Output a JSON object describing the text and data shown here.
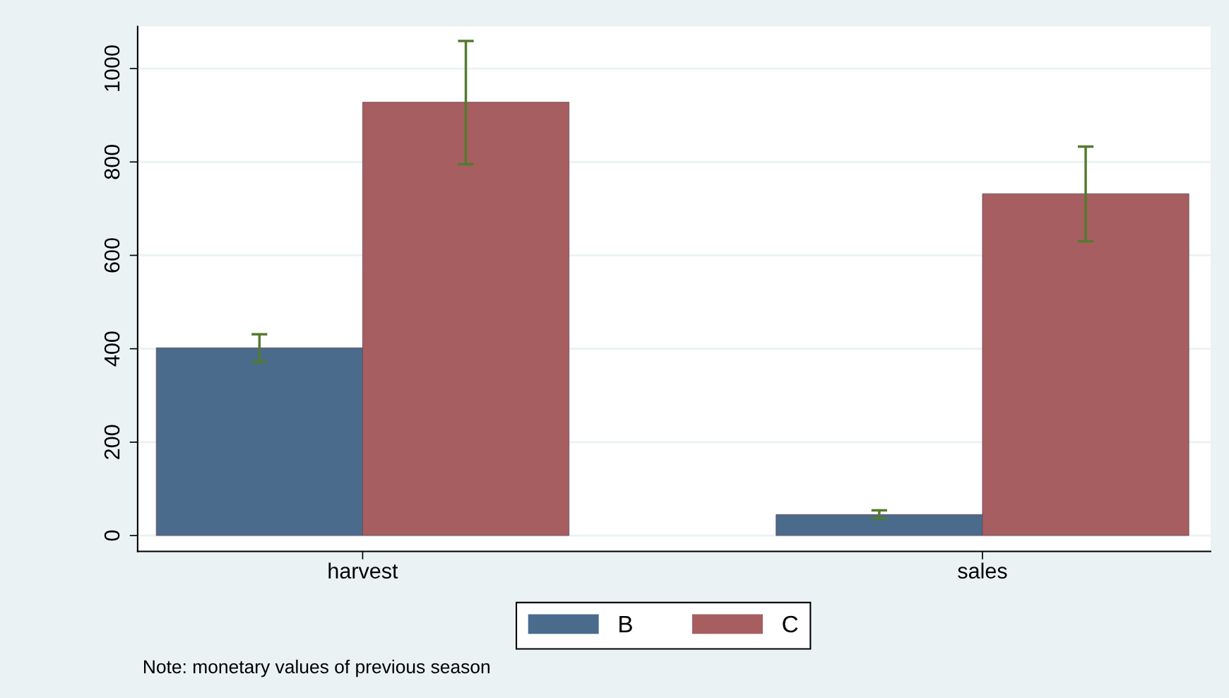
{
  "chart_data": {
    "type": "bar",
    "categories": [
      "harvest",
      "sales"
    ],
    "series": [
      {
        "name": "B",
        "color": "#4a6b8c",
        "values": [
          402,
          45
        ],
        "errors": [
          [
            372,
            431
          ],
          [
            37,
            54
          ]
        ]
      },
      {
        "name": "C",
        "color": "#a65e61",
        "values": [
          928,
          732
        ],
        "errors": [
          [
            795,
            1059
          ],
          [
            630,
            833
          ]
        ]
      }
    ],
    "ylim": [
      -34,
      1090
    ],
    "yticks": [
      0,
      200,
      400,
      600,
      800,
      1000
    ],
    "grid": "y",
    "legend": "bottom",
    "annotations": [
      "Note: monetary values of previous season"
    ]
  }
}
